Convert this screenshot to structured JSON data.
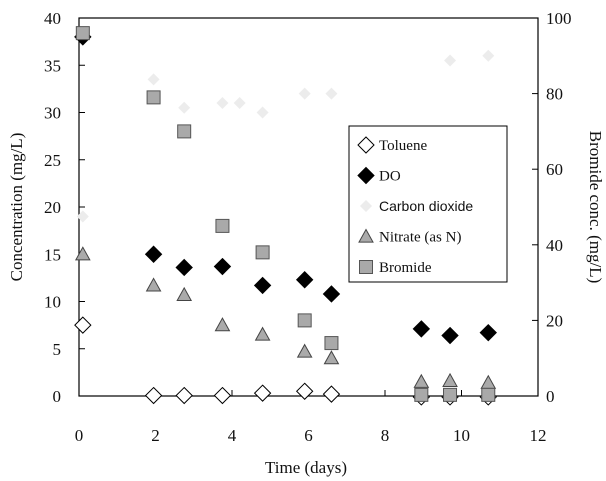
{
  "chart_data": {
    "type": "scatter",
    "title": "",
    "xlabel": "Time (days)",
    "ylabel": "Concentration (mg/L)",
    "y2label": "Bromide conc. (mg/L)",
    "xlim": [
      0,
      12
    ],
    "ylim": [
      0,
      40
    ],
    "y2lim": [
      0,
      100
    ],
    "xticks": [
      0,
      2,
      4,
      6,
      8,
      10,
      12
    ],
    "yticks": [
      0,
      5,
      10,
      15,
      20,
      25,
      30,
      35,
      40
    ],
    "y2ticks": [
      0,
      20,
      40,
      60,
      80,
      100
    ],
    "grid": false,
    "legend_position": "right",
    "series": [
      {
        "name": "Toluene",
        "axis": "left",
        "marker": "diamond-open",
        "color": "#ffffff",
        "points": [
          [
            0.1,
            7.5
          ],
          [
            1.95,
            0.05
          ],
          [
            2.75,
            0.05
          ],
          [
            3.75,
            0.05
          ],
          [
            4.8,
            0.3
          ],
          [
            5.9,
            0.5
          ],
          [
            6.6,
            0.2
          ],
          [
            8.95,
            -0.1
          ],
          [
            9.7,
            -0.1
          ],
          [
            10.7,
            -0.1
          ]
        ]
      },
      {
        "name": "DO",
        "axis": "left",
        "marker": "diamond-filled",
        "color": "#000000",
        "points": [
          [
            0.1,
            38.0
          ],
          [
            1.95,
            15.0
          ],
          [
            2.75,
            13.6
          ],
          [
            3.75,
            13.7
          ],
          [
            4.8,
            11.7
          ],
          [
            5.9,
            12.3
          ],
          [
            6.6,
            10.8
          ],
          [
            8.95,
            7.1
          ],
          [
            9.7,
            6.4
          ],
          [
            10.7,
            6.7
          ]
        ]
      },
      {
        "name": "Carbon dioxide",
        "axis": "left",
        "marker": "faint",
        "color": "#ececec",
        "points": [
          [
            0.1,
            19.0
          ],
          [
            1.95,
            33.5
          ],
          [
            2.75,
            30.5
          ],
          [
            3.75,
            31.0
          ],
          [
            4.2,
            31.0
          ],
          [
            4.8,
            30.0
          ],
          [
            5.9,
            32.0
          ],
          [
            6.6,
            32.0
          ],
          [
            9.7,
            35.5
          ],
          [
            10.7,
            36.0
          ]
        ]
      },
      {
        "name": "Nitrate (as N)",
        "axis": "left",
        "marker": "triangle",
        "color": "#aaaaaa",
        "points": [
          [
            0.1,
            15.0
          ],
          [
            1.95,
            11.7
          ],
          [
            2.75,
            10.7
          ],
          [
            3.75,
            7.5
          ],
          [
            4.8,
            6.5
          ],
          [
            5.9,
            4.7
          ],
          [
            6.6,
            4.0
          ],
          [
            8.95,
            1.5
          ],
          [
            9.7,
            1.6
          ],
          [
            10.7,
            1.4
          ]
        ]
      },
      {
        "name": "Bromide",
        "axis": "right",
        "marker": "square",
        "color": "#a9a9a9",
        "points": [
          [
            0.1,
            96.0
          ],
          [
            1.95,
            79.0
          ],
          [
            2.75,
            70.0
          ],
          [
            3.75,
            45.0
          ],
          [
            4.8,
            38.0
          ],
          [
            5.9,
            20.0
          ],
          [
            6.6,
            14.0
          ],
          [
            8.95,
            0.3
          ],
          [
            9.7,
            0.3
          ],
          [
            10.7,
            0.3
          ]
        ]
      }
    ]
  }
}
